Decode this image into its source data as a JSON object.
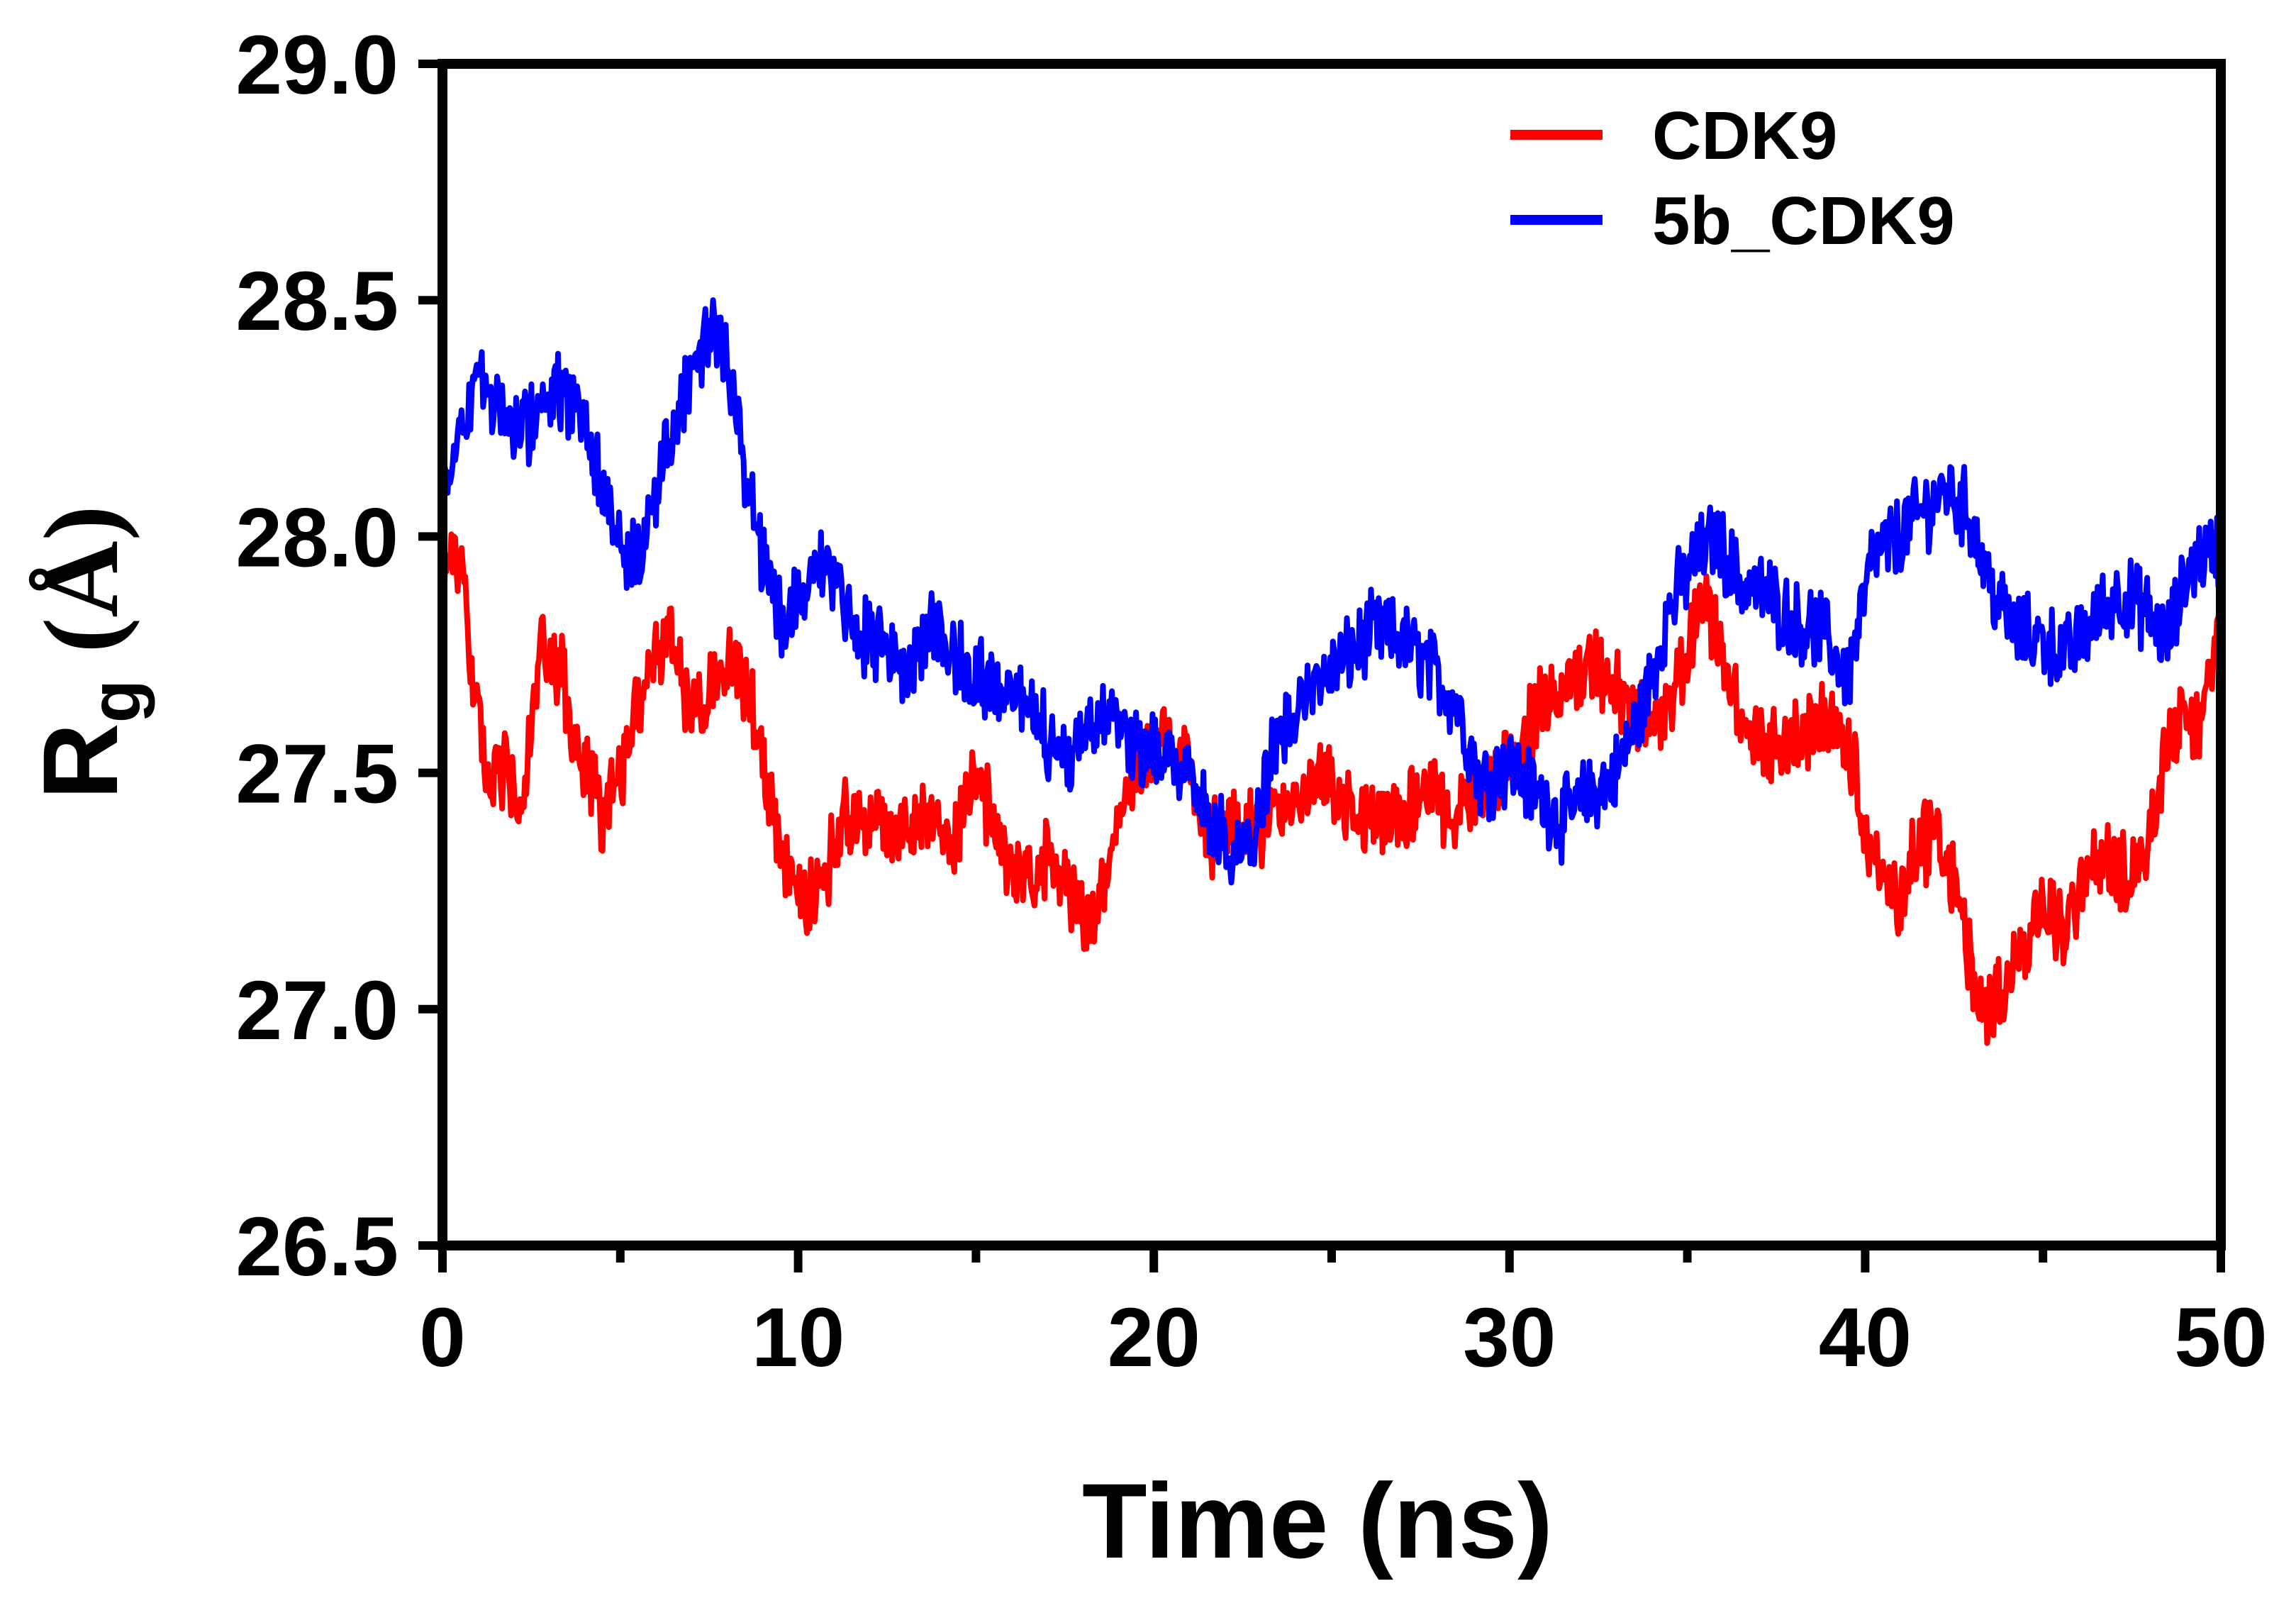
{
  "chart_data": {
    "type": "line",
    "title": "",
    "xlabel": "Time (ns)",
    "ylabel": {
      "main": "R",
      "subscript": "g",
      "unit": " (Å)"
    },
    "xlim": [
      0,
      50
    ],
    "ylim": [
      26.5,
      29.0
    ],
    "xticks": [
      0,
      10,
      20,
      30,
      40,
      50
    ],
    "xtick_labels": [
      "0",
      "10",
      "20",
      "30",
      "40",
      "50"
    ],
    "yticks": [
      26.5,
      27.0,
      27.5,
      28.0,
      28.5,
      29.0
    ],
    "ytick_labels": [
      "26.5",
      "27.0",
      "27.5",
      "28.0",
      "28.5",
      "29.0"
    ],
    "grid": false,
    "legend_position": "top-right",
    "series": [
      {
        "name": "CDK9",
        "color": "#ff0000",
        "noise": 0.07,
        "points": [
          [
            0,
            27.85
          ],
          [
            0.3,
            28.02
          ],
          [
            0.8,
            27.75
          ],
          [
            1.2,
            27.48
          ],
          [
            1.8,
            27.5
          ],
          [
            2.2,
            27.42
          ],
          [
            2.8,
            27.75
          ],
          [
            3.3,
            27.72
          ],
          [
            3.9,
            27.5
          ],
          [
            4.5,
            27.42
          ],
          [
            5.2,
            27.55
          ],
          [
            5.8,
            27.72
          ],
          [
            6.4,
            27.8
          ],
          [
            7.0,
            27.62
          ],
          [
            7.6,
            27.7
          ],
          [
            8.2,
            27.74
          ],
          [
            8.8,
            27.62
          ],
          [
            9.3,
            27.4
          ],
          [
            10.0,
            27.22
          ],
          [
            10.6,
            27.25
          ],
          [
            11.2,
            27.4
          ],
          [
            12.0,
            27.4
          ],
          [
            12.8,
            27.38
          ],
          [
            13.6,
            27.42
          ],
          [
            14.3,
            27.35
          ],
          [
            15.0,
            27.5
          ],
          [
            15.7,
            27.35
          ],
          [
            16.4,
            27.25
          ],
          [
            17.2,
            27.35
          ],
          [
            17.9,
            27.2
          ],
          [
            18.3,
            27.18
          ],
          [
            18.8,
            27.35
          ],
          [
            19.5,
            27.52
          ],
          [
            20.3,
            27.58
          ],
          [
            21.0,
            27.52
          ],
          [
            21.6,
            27.35
          ],
          [
            22.3,
            27.4
          ],
          [
            23.0,
            27.38
          ],
          [
            23.8,
            27.45
          ],
          [
            24.6,
            27.5
          ],
          [
            25.3,
            27.45
          ],
          [
            26.0,
            27.4
          ],
          [
            26.8,
            27.4
          ],
          [
            27.6,
            27.45
          ],
          [
            28.4,
            27.42
          ],
          [
            29.2,
            27.45
          ],
          [
            30.0,
            27.52
          ],
          [
            30.8,
            27.62
          ],
          [
            31.6,
            27.7
          ],
          [
            32.4,
            27.72
          ],
          [
            33.2,
            27.65
          ],
          [
            34.0,
            27.6
          ],
          [
            34.8,
            27.7
          ],
          [
            35.4,
            27.88
          ],
          [
            36.0,
            27.75
          ],
          [
            36.6,
            27.58
          ],
          [
            37.4,
            27.55
          ],
          [
            38.2,
            27.58
          ],
          [
            39.0,
            27.62
          ],
          [
            39.6,
            27.55
          ],
          [
            40.2,
            27.3
          ],
          [
            40.8,
            27.22
          ],
          [
            41.4,
            27.32
          ],
          [
            42.0,
            27.38
          ],
          [
            42.6,
            27.25
          ],
          [
            43.2,
            27.0
          ],
          [
            43.8,
            27.02
          ],
          [
            44.4,
            27.12
          ],
          [
            45.0,
            27.25
          ],
          [
            45.6,
            27.15
          ],
          [
            46.3,
            27.3
          ],
          [
            47.0,
            27.3
          ],
          [
            47.6,
            27.28
          ],
          [
            48.2,
            27.45
          ],
          [
            48.8,
            27.62
          ],
          [
            49.4,
            27.6
          ],
          [
            50.0,
            27.78
          ]
        ]
      },
      {
        "name": "5b_CDK9",
        "color": "#0000ff",
        "noise": 0.07,
        "points": [
          [
            0,
            28.1
          ],
          [
            0.4,
            28.2
          ],
          [
            0.9,
            28.32
          ],
          [
            1.4,
            28.3
          ],
          [
            2.0,
            28.22
          ],
          [
            2.6,
            28.25
          ],
          [
            3.2,
            28.32
          ],
          [
            3.8,
            28.25
          ],
          [
            4.4,
            28.15
          ],
          [
            5.0,
            28.0
          ],
          [
            5.5,
            27.95
          ],
          [
            6.0,
            28.1
          ],
          [
            6.5,
            28.25
          ],
          [
            7.0,
            28.35
          ],
          [
            7.6,
            28.45
          ],
          [
            8.0,
            28.4
          ],
          [
            8.5,
            28.15
          ],
          [
            9.0,
            27.95
          ],
          [
            9.6,
            27.8
          ],
          [
            10.2,
            27.9
          ],
          [
            10.8,
            27.95
          ],
          [
            11.5,
            27.8
          ],
          [
            12.2,
            27.78
          ],
          [
            13.0,
            27.72
          ],
          [
            13.8,
            27.8
          ],
          [
            14.6,
            27.72
          ],
          [
            15.3,
            27.68
          ],
          [
            16.0,
            27.7
          ],
          [
            16.8,
            27.6
          ],
          [
            17.5,
            27.55
          ],
          [
            18.2,
            27.6
          ],
          [
            18.9,
            27.62
          ],
          [
            19.6,
            27.55
          ],
          [
            20.3,
            27.55
          ],
          [
            21.0,
            27.52
          ],
          [
            21.6,
            27.4
          ],
          [
            22.2,
            27.32
          ],
          [
            22.8,
            27.35
          ],
          [
            23.4,
            27.55
          ],
          [
            24.1,
            27.65
          ],
          [
            24.8,
            27.7
          ],
          [
            25.5,
            27.75
          ],
          [
            26.2,
            27.8
          ],
          [
            27.0,
            27.78
          ],
          [
            27.8,
            27.72
          ],
          [
            28.5,
            27.65
          ],
          [
            29.2,
            27.48
          ],
          [
            30.0,
            27.52
          ],
          [
            30.8,
            27.45
          ],
          [
            31.5,
            27.4
          ],
          [
            32.2,
            27.45
          ],
          [
            33.0,
            27.5
          ],
          [
            33.8,
            27.65
          ],
          [
            34.5,
            27.85
          ],
          [
            35.2,
            27.95
          ],
          [
            35.8,
            28.0
          ],
          [
            36.5,
            27.9
          ],
          [
            37.2,
            27.88
          ],
          [
            38.0,
            27.82
          ],
          [
            38.8,
            27.8
          ],
          [
            39.5,
            27.7
          ],
          [
            40.2,
            27.95
          ],
          [
            40.9,
            28.0
          ],
          [
            41.6,
            28.05
          ],
          [
            42.3,
            28.1
          ],
          [
            42.9,
            28.05
          ],
          [
            43.5,
            27.9
          ],
          [
            44.2,
            27.8
          ],
          [
            45.0,
            27.78
          ],
          [
            45.7,
            27.75
          ],
          [
            46.4,
            27.82
          ],
          [
            47.1,
            27.88
          ],
          [
            47.8,
            27.85
          ],
          [
            48.5,
            27.78
          ],
          [
            49.2,
            27.95
          ],
          [
            50.0,
            27.98
          ]
        ]
      }
    ]
  }
}
